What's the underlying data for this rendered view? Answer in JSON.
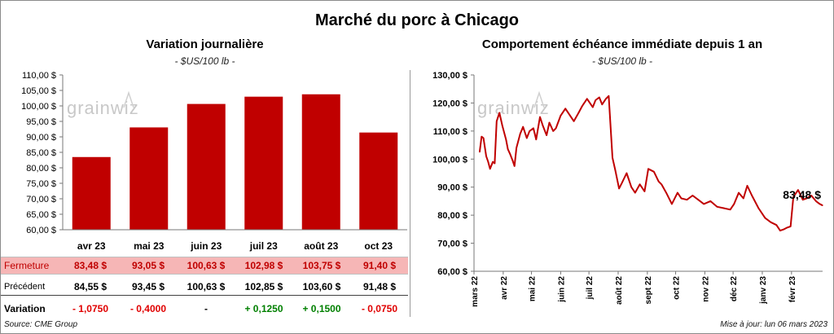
{
  "title": "Marché du porc à Chicago",
  "left": {
    "title": "Variation journalière",
    "unit": "- $US/100 lb -"
  },
  "right": {
    "title": "Comportement  échéance immédiate depuis 1 an",
    "unit": "- $US/100 lb -",
    "last_label": "83,48 $"
  },
  "watermark": "grainwiz",
  "table": {
    "close_label": "Fermeture",
    "prev_label": "Précédent",
    "var_label": "Variation",
    "close": [
      "83,48  $",
      "93,05  $",
      "100,63  $",
      "102,98  $",
      "103,75  $",
      "91,40  $"
    ],
    "prev": [
      "84,55  $",
      "93,45  $",
      "100,63  $",
      "102,85  $",
      "103,60  $",
      "91,48  $"
    ],
    "var": [
      "- 1,0750",
      "- 0,4000",
      "-",
      "+ 0,1250",
      "+ 0,1500",
      "- 0,0750"
    ],
    "var_sign": [
      "neg",
      "neg",
      "neu",
      "pos",
      "pos",
      "neg"
    ]
  },
  "footer": {
    "source": "Source: CME Group",
    "updated": "Mise à jour: lun 06 mars 2023"
  },
  "chart_data": [
    {
      "type": "bar",
      "title": "Variation journalière",
      "ylabel": "$US/100 lb",
      "categories": [
        "avr 23",
        "mai 23",
        "juin 23",
        "juil 23",
        "août 23",
        "oct 23"
      ],
      "values": [
        83.48,
        93.05,
        100.63,
        102.98,
        103.75,
        91.4
      ],
      "ylim": [
        60,
        110
      ],
      "yticks": [
        60,
        65,
        70,
        75,
        80,
        85,
        90,
        95,
        100,
        105,
        110
      ],
      "ytick_labels": [
        "60,00 $",
        "65,00 $",
        "70,00 $",
        "75,00 $",
        "80,00 $",
        "85,00 $",
        "90,00 $",
        "95,00 $",
        "100,00 $",
        "105,00 $",
        "110,00 $"
      ],
      "color": "#c00000",
      "grid": false
    },
    {
      "type": "line",
      "title": "Comportement  échéance immédiate depuis 1 an",
      "ylabel": "$US/100 lb",
      "ylim": [
        60,
        130
      ],
      "yticks": [
        60,
        70,
        80,
        90,
        100,
        110,
        120,
        130
      ],
      "ytick_labels": [
        "60,00 $",
        "70,00 $",
        "80,00 $",
        "90,00 $",
        "100,00 $",
        "110,00 $",
        "120,00 $",
        "130,00 $"
      ],
      "xticks": [
        "mars 22",
        "avr 22",
        "mai 22",
        "juin 22",
        "juil 22",
        "août 22",
        "sept 22",
        "oct 22",
        "nov 22",
        "déc 22",
        "janv 23",
        "févr 23"
      ],
      "x": [
        "2022-03-07",
        "2022-03-09",
        "2022-03-11",
        "2022-03-14",
        "2022-03-16",
        "2022-03-18",
        "2022-03-21",
        "2022-03-23",
        "2022-03-25",
        "2022-03-28",
        "2022-03-31",
        "2022-04-04",
        "2022-04-06",
        "2022-04-08",
        "2022-04-11",
        "2022-04-13",
        "2022-04-15",
        "2022-04-19",
        "2022-04-22",
        "2022-04-26",
        "2022-04-29",
        "2022-05-03",
        "2022-05-06",
        "2022-05-10",
        "2022-05-13",
        "2022-05-17",
        "2022-05-20",
        "2022-05-24",
        "2022-05-27",
        "2022-06-01",
        "2022-06-06",
        "2022-06-10",
        "2022-06-15",
        "2022-06-20",
        "2022-06-24",
        "2022-06-29",
        "2022-07-05",
        "2022-07-08",
        "2022-07-12",
        "2022-07-15",
        "2022-07-19",
        "2022-07-22",
        "2022-07-26",
        "2022-07-29",
        "2022-08-02",
        "2022-08-05",
        "2022-08-10",
        "2022-08-15",
        "2022-08-19",
        "2022-08-24",
        "2022-08-29",
        "2022-09-02",
        "2022-09-08",
        "2022-09-13",
        "2022-09-16",
        "2022-09-21",
        "2022-09-27",
        "2022-10-03",
        "2022-10-07",
        "2022-10-13",
        "2022-10-19",
        "2022-10-25",
        "2022-10-31",
        "2022-11-07",
        "2022-11-14",
        "2022-11-21",
        "2022-11-28",
        "2022-12-02",
        "2022-12-07",
        "2022-12-12",
        "2022-12-16",
        "2022-12-21",
        "2022-12-28",
        "2023-01-04",
        "2023-01-10",
        "2023-01-16",
        "2023-01-20",
        "2023-01-24",
        "2023-01-27",
        "2023-01-31",
        "2023-02-03",
        "2023-02-08",
        "2023-02-13",
        "2023-02-17",
        "2023-02-22",
        "2023-02-27",
        "2023-03-03",
        "2023-03-06"
      ],
      "y": [
        102.5,
        108.0,
        107.5,
        101.0,
        99.0,
        96.5,
        99.0,
        98.5,
        113.5,
        116.5,
        112.0,
        107.0,
        103.5,
        102.0,
        99.5,
        97.5,
        104.0,
        109.0,
        111.5,
        107.5,
        110.0,
        111.0,
        107.0,
        115.0,
        112.0,
        108.5,
        113.0,
        110.0,
        111.0,
        115.5,
        118.0,
        116.0,
        113.5,
        116.5,
        119.0,
        121.5,
        118.5,
        121.0,
        122.0,
        119.5,
        121.5,
        122.5,
        100.5,
        96.0,
        89.5,
        91.5,
        95.0,
        90.0,
        88.0,
        91.0,
        88.5,
        96.5,
        95.5,
        92.0,
        91.0,
        88.0,
        84.0,
        88.0,
        86.0,
        85.5,
        87.0,
        85.5,
        84.0,
        85.0,
        83.0,
        82.5,
        82.0,
        84.0,
        88.0,
        86.0,
        90.5,
        87.0,
        82.5,
        79.0,
        77.5,
        76.5,
        74.5,
        75.0,
        75.5,
        76.0,
        86.5,
        89.0,
        85.5,
        86.0,
        87.0,
        85.0,
        84.0,
        83.48
      ],
      "last_value_label": "83,48 $",
      "color": "#c00000",
      "grid": false
    }
  ]
}
